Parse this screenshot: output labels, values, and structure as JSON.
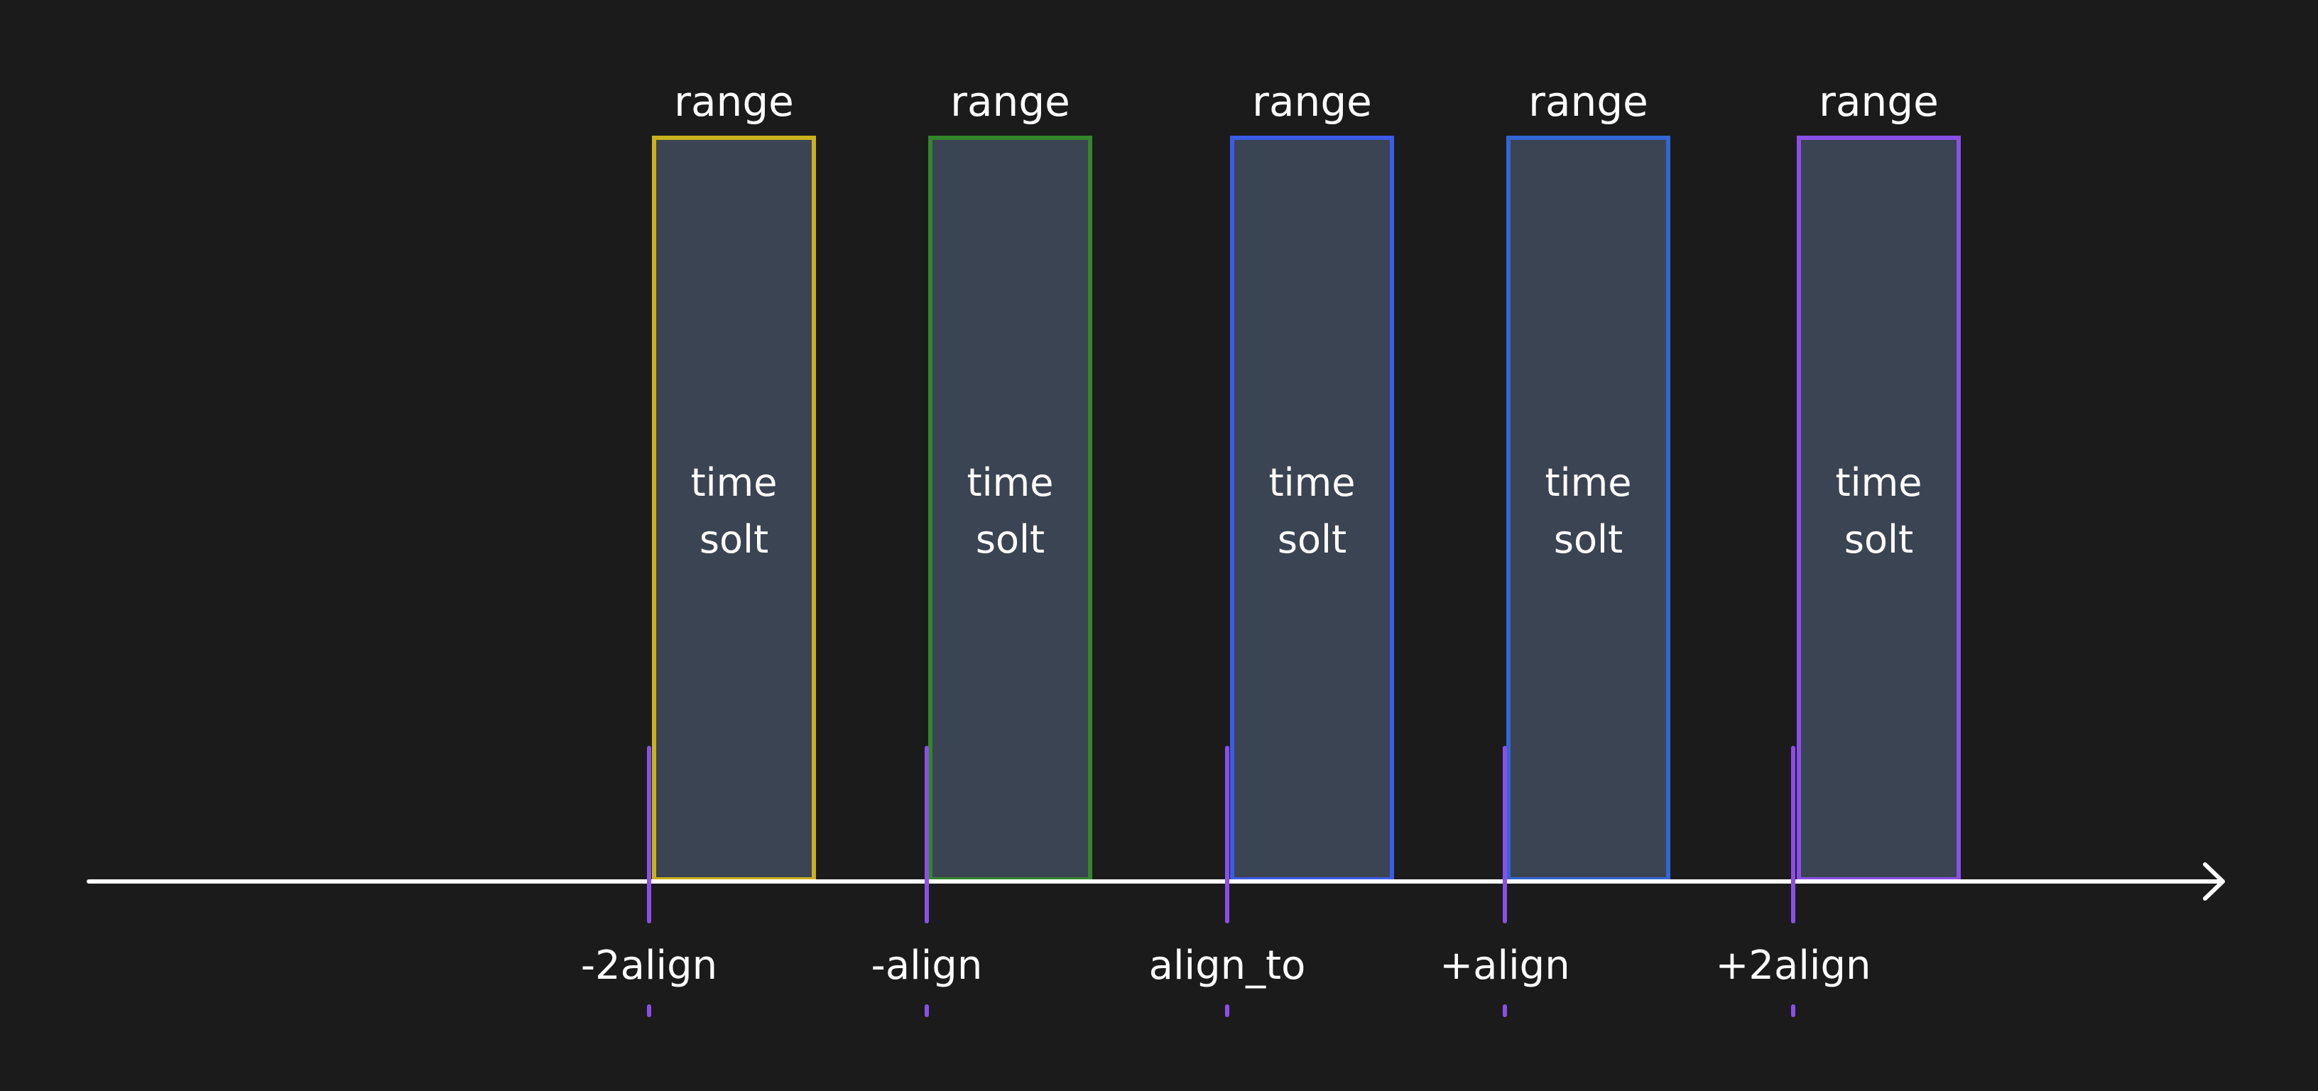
{
  "background": "#1b1b1b",
  "slot_fill": "#3b4452",
  "tick_color": "#8b4fe8",
  "axis_color": "#ffffff",
  "slots": [
    {
      "top_label": "range",
      "body_lines": [
        "time",
        "solt"
      ],
      "border_color": "#c9b21c",
      "tick_label": "-2align"
    },
    {
      "top_label": "range",
      "body_lines": [
        "time",
        "solt"
      ],
      "border_color": "#33862b",
      "tick_label": "-align"
    },
    {
      "top_label": "range",
      "body_lines": [
        "time",
        "solt"
      ],
      "border_color": "#3b5ce8",
      "tick_label": "align_to"
    },
    {
      "top_label": "range",
      "body_lines": [
        "time",
        "solt"
      ],
      "border_color": "#3366d6",
      "tick_label": "+align"
    },
    {
      "top_label": "range",
      "body_lines": [
        "time",
        "solt"
      ],
      "border_color": "#8b4fe8",
      "tick_label": "+2align"
    }
  ]
}
